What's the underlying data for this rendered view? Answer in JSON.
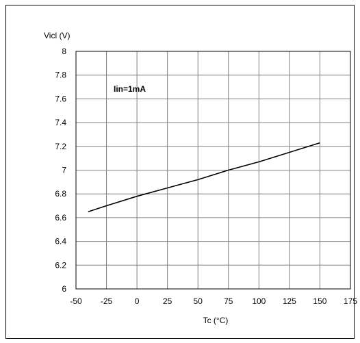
{
  "chart_data": {
    "type": "line",
    "ylabel": "Vicl (V)",
    "xlabel": "Tc (°C)",
    "annotation": "Iin=1mA",
    "xlim": [
      -50,
      175
    ],
    "ylim": [
      6,
      8
    ],
    "x_ticks": [
      -50,
      -25,
      0,
      25,
      50,
      75,
      100,
      125,
      150,
      175
    ],
    "y_ticks": [
      6,
      6.2,
      6.4,
      6.6,
      6.8,
      7,
      7.2,
      7.4,
      7.6,
      7.8,
      8
    ],
    "x_tick_labels": [
      "-50",
      "-25",
      "0",
      "25",
      "50",
      "75",
      "100",
      "125",
      "150",
      "175"
    ],
    "y_tick_labels": [
      "6",
      "6.2",
      "6.4",
      "6.6",
      "6.8",
      "7",
      "7.2",
      "7.4",
      "7.6",
      "7.8",
      "8"
    ],
    "grid": true,
    "series": [
      {
        "color": "#000000",
        "x": [
          -40,
          -25,
          0,
          25,
          50,
          75,
          100,
          125,
          150
        ],
        "y": [
          6.65,
          6.7,
          6.78,
          6.85,
          6.92,
          7.0,
          7.07,
          7.15,
          7.23
        ]
      }
    ]
  }
}
